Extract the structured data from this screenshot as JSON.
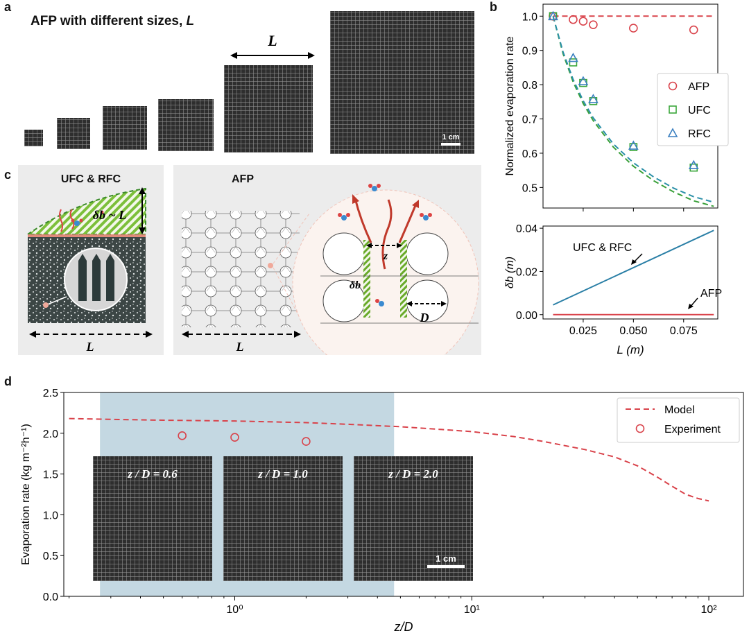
{
  "panel_a": {
    "label": "a",
    "title": "AFP with different sizes, ",
    "title_var": "L",
    "size_label": "L",
    "scale_bar": "1 cm"
  },
  "panel_b": {
    "label": "b",
    "legend": [
      "AFP",
      "UFC",
      "RFC"
    ]
  },
  "panel_c": {
    "label": "c",
    "left_title": "UFC & RFC",
    "right_title": "AFP",
    "delta_label": "δb ~ L",
    "length_label": "L",
    "z_label": "z",
    "D_label": "D",
    "delta_b_label": "δb"
  },
  "panel_d": {
    "label": "d",
    "legend": [
      "Model",
      "Experiment"
    ],
    "insets": [
      "z / D = 0.6",
      "z / D = 1.0",
      "z / D = 2.0"
    ],
    "scale_bar": "1 cm"
  },
  "colors": {
    "afp": "#d9424a",
    "ufc": "#3aa63a",
    "rfc": "#3a7fc0",
    "shade": "#c4d8e2",
    "bline": "#2a7fa6"
  },
  "chart_data": [
    {
      "type": "scatter",
      "id": "b-top",
      "ylabel": "Normalized evaporation rate",
      "xlim": [
        0.005,
        0.092
      ],
      "ylim": [
        0.44,
        1.035
      ],
      "yticks": [
        "0.5",
        "0.6",
        "0.7",
        "0.8",
        "0.9",
        "1.0"
      ],
      "series": [
        {
          "name": "AFP",
          "marker": "circle",
          "x": [
            0.01,
            0.02,
            0.025,
            0.03,
            0.05,
            0.08
          ],
          "y": [
            1.0,
            0.99,
            0.985,
            0.975,
            0.965,
            0.96
          ]
        },
        {
          "name": "UFC",
          "marker": "square",
          "x": [
            0.01,
            0.02,
            0.025,
            0.03,
            0.05,
            0.08
          ],
          "y": [
            1.0,
            0.865,
            0.805,
            0.752,
            0.618,
            0.558
          ]
        },
        {
          "name": "RFC",
          "marker": "triangle",
          "x": [
            0.01,
            0.02,
            0.025,
            0.03,
            0.05,
            0.08
          ],
          "y": [
            1.0,
            0.878,
            0.81,
            0.758,
            0.622,
            0.565
          ]
        }
      ],
      "model_curves": [
        {
          "for": "AFP",
          "style": "dashed",
          "x": [
            0.01,
            0.09
          ],
          "y": [
            1.0,
            1.0
          ]
        },
        {
          "for": "UFC",
          "style": "dashed",
          "x": [
            0.01,
            0.015,
            0.02,
            0.025,
            0.03,
            0.04,
            0.05,
            0.06,
            0.07,
            0.08,
            0.09
          ],
          "y": [
            1.0,
            0.89,
            0.808,
            0.745,
            0.695,
            0.618,
            0.562,
            0.52,
            0.487,
            0.461,
            0.445
          ]
        },
        {
          "for": "RFC",
          "style": "dashed",
          "x": [
            0.01,
            0.015,
            0.02,
            0.025,
            0.03,
            0.04,
            0.05,
            0.06,
            0.07,
            0.08,
            0.09
          ],
          "y": [
            1.0,
            0.895,
            0.815,
            0.753,
            0.703,
            0.627,
            0.572,
            0.531,
            0.498,
            0.473,
            0.457
          ]
        }
      ]
    },
    {
      "type": "line",
      "id": "b-bottom",
      "xlabel": "L (m)",
      "ylabel": "δb (m)",
      "xlim": [
        0.005,
        0.092
      ],
      "ylim": [
        -0.002,
        0.041
      ],
      "xticks": [
        "0.025",
        "0.050",
        "0.075"
      ],
      "yticks": [
        "0.00",
        "0.02",
        "0.04"
      ],
      "series": [
        {
          "name": "UFC & RFC",
          "x": [
            0.01,
            0.09
          ],
          "y": [
            0.0045,
            0.039
          ]
        },
        {
          "name": "AFP",
          "x": [
            0.01,
            0.09
          ],
          "y": [
            0.0,
            0.0
          ]
        }
      ]
    },
    {
      "type": "line",
      "id": "d",
      "xlabel": "z/D",
      "ylabel": "Evaporation rate (kg m⁻²h⁻¹)",
      "xscale": "log",
      "xlim": [
        0.19,
        140
      ],
      "ylim": [
        0.0,
        2.5
      ],
      "xticks": [
        "10⁰",
        "10¹",
        "10²"
      ],
      "yticks": [
        "0.0",
        "0.5",
        "1.0",
        "1.5",
        "2.0",
        "2.5"
      ],
      "shaded_x": [
        0.27,
        4.7
      ],
      "series": [
        {
          "name": "Model",
          "style": "dashed",
          "x": [
            0.2,
            0.3,
            0.5,
            1.0,
            2.0,
            3.0,
            5.0,
            8.0,
            10,
            15,
            20,
            30,
            40,
            50,
            60,
            70,
            80,
            90,
            100
          ],
          "y": [
            2.18,
            2.17,
            2.16,
            2.15,
            2.13,
            2.11,
            2.08,
            2.04,
            2.02,
            1.96,
            1.9,
            1.8,
            1.71,
            1.6,
            1.47,
            1.35,
            1.25,
            1.2,
            1.17
          ]
        },
        {
          "name": "Experiment",
          "marker": "circle",
          "x": [
            0.6,
            1.0,
            2.0
          ],
          "y": [
            1.97,
            1.95,
            1.9
          ]
        }
      ]
    }
  ]
}
